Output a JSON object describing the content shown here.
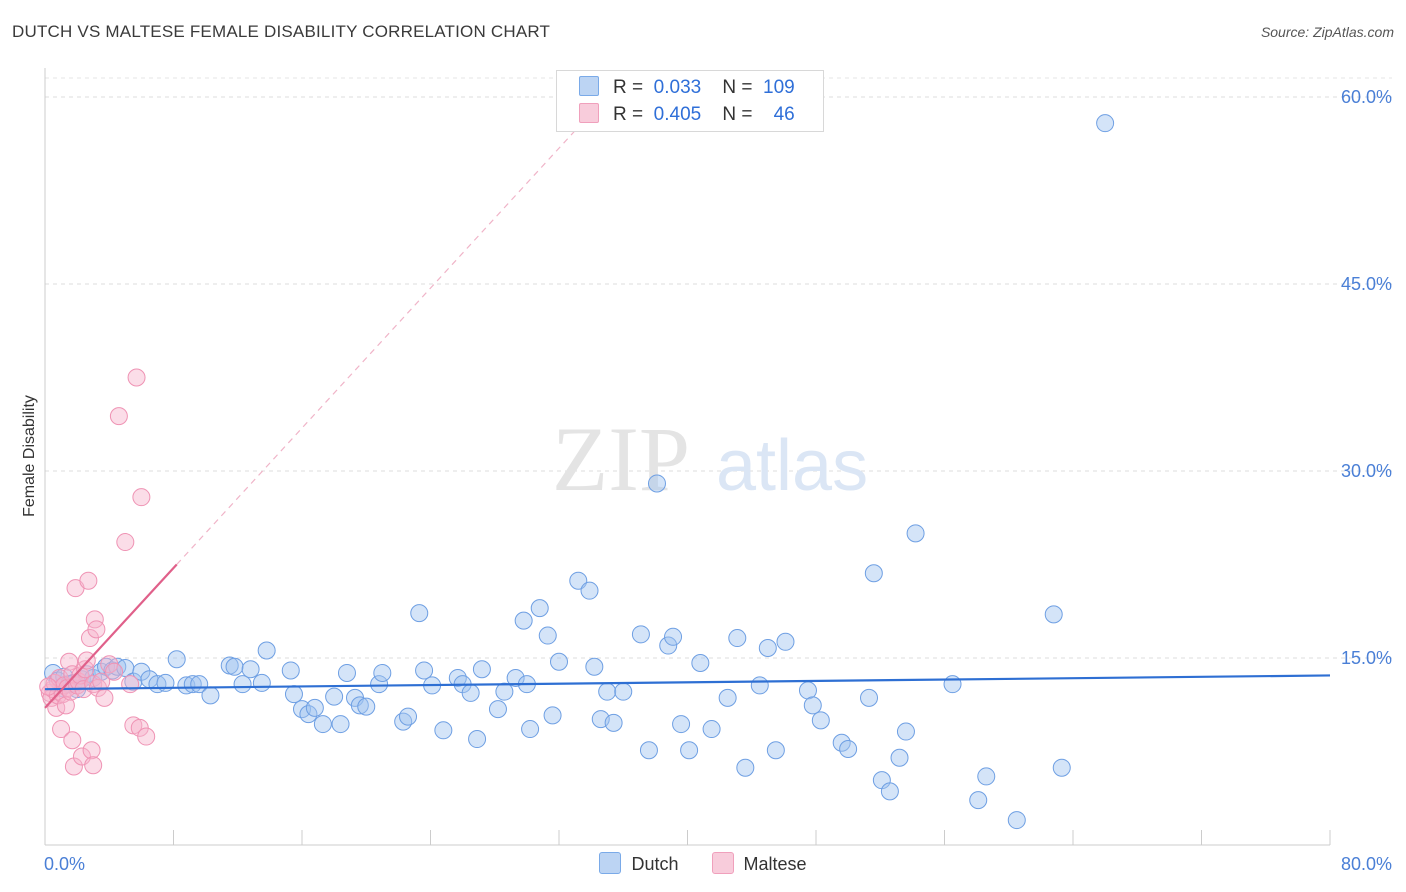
{
  "header": {
    "title": "DUTCH VS MALTESE FEMALE DISABILITY CORRELATION CHART",
    "source": "Source: ZipAtlas.com"
  },
  "legend": {
    "dutch": {
      "r_label": "R =",
      "r_value": "0.033",
      "n_label": "N =",
      "n_value": "109"
    },
    "maltese": {
      "r_label": "R =",
      "r_value": "0.405",
      "n_label": "N =",
      "n_value": "46"
    }
  },
  "bottom_legend": {
    "dutch": "Dutch",
    "maltese": "Maltese"
  },
  "watermark": {
    "zip": "ZIP",
    "atlas": "atlas"
  },
  "chart_data": {
    "type": "scatter",
    "title": "DUTCH VS MALTESE FEMALE DISABILITY CORRELATION CHART",
    "ylabel": "Female Disability",
    "xlabel": "",
    "xlim": [
      0,
      80
    ],
    "ylim": [
      0,
      60
    ],
    "x_tick_labels": [
      "0.0%",
      "80.0%"
    ],
    "y_ticks": [
      15,
      30,
      45,
      60
    ],
    "y_tick_labels": [
      "15.0%",
      "30.0%",
      "45.0%",
      "60.0%"
    ],
    "grid": true,
    "legend_position": "top-center",
    "colors": {
      "dutch": "#7aaae8",
      "dutch_line": "#2e6fd3",
      "maltese": "#f0a0bc",
      "maltese_line": "#e0608a"
    },
    "series": [
      {
        "name": "Dutch",
        "r": 0.033,
        "n": 109,
        "trend": {
          "x": [
            0,
            80
          ],
          "y": [
            12.5,
            13.6
          ]
        },
        "points": [
          [
            0.5,
            13.8
          ],
          [
            0.8,
            13.2
          ],
          [
            1.0,
            12.6
          ],
          [
            1.2,
            13.5
          ],
          [
            1.5,
            12.9
          ],
          [
            1.8,
            13.0
          ],
          [
            2.0,
            12.5
          ],
          [
            2.3,
            13.3
          ],
          [
            2.6,
            13.7
          ],
          [
            3.0,
            13.4
          ],
          [
            3.5,
            13.9
          ],
          [
            3.8,
            14.3
          ],
          [
            4.2,
            14.0
          ],
          [
            4.5,
            14.3
          ],
          [
            5.0,
            14.2
          ],
          [
            5.5,
            13.1
          ],
          [
            6.0,
            13.9
          ],
          [
            6.5,
            13.3
          ],
          [
            7.0,
            12.9
          ],
          [
            7.5,
            13.0
          ],
          [
            8.2,
            14.9
          ],
          [
            8.8,
            12.8
          ],
          [
            9.2,
            12.9
          ],
          [
            9.6,
            12.9
          ],
          [
            10.3,
            12.0
          ],
          [
            11.5,
            14.4
          ],
          [
            11.8,
            14.3
          ],
          [
            12.3,
            12.9
          ],
          [
            12.8,
            14.1
          ],
          [
            13.5,
            13.0
          ],
          [
            13.8,
            15.6
          ],
          [
            15.3,
            14.0
          ],
          [
            15.5,
            12.1
          ],
          [
            16.0,
            10.9
          ],
          [
            16.4,
            10.5
          ],
          [
            16.8,
            11.0
          ],
          [
            17.3,
            9.7
          ],
          [
            18.0,
            11.9
          ],
          [
            18.4,
            9.7
          ],
          [
            18.8,
            13.8
          ],
          [
            19.3,
            11.8
          ],
          [
            19.6,
            11.2
          ],
          [
            20.0,
            11.1
          ],
          [
            20.8,
            12.9
          ],
          [
            21.0,
            13.8
          ],
          [
            22.3,
            9.9
          ],
          [
            22.6,
            10.3
          ],
          [
            23.3,
            18.6
          ],
          [
            23.6,
            14.0
          ],
          [
            24.1,
            12.8
          ],
          [
            24.8,
            9.2
          ],
          [
            25.7,
            13.4
          ],
          [
            26.0,
            12.9
          ],
          [
            26.5,
            12.2
          ],
          [
            26.9,
            8.5
          ],
          [
            27.2,
            14.1
          ],
          [
            28.2,
            10.9
          ],
          [
            28.6,
            12.3
          ],
          [
            29.3,
            13.4
          ],
          [
            29.8,
            18.0
          ],
          [
            30.0,
            12.9
          ],
          [
            30.2,
            9.3
          ],
          [
            30.8,
            19.0
          ],
          [
            31.3,
            16.8
          ],
          [
            31.6,
            10.4
          ],
          [
            32.0,
            14.7
          ],
          [
            33.2,
            21.2
          ],
          [
            33.9,
            20.4
          ],
          [
            34.2,
            14.3
          ],
          [
            34.6,
            10.1
          ],
          [
            35.0,
            12.3
          ],
          [
            35.4,
            9.8
          ],
          [
            36.0,
            12.3
          ],
          [
            37.1,
            16.9
          ],
          [
            37.6,
            7.6
          ],
          [
            38.1,
            29.0
          ],
          [
            38.8,
            16.0
          ],
          [
            39.1,
            16.7
          ],
          [
            39.6,
            9.7
          ],
          [
            40.1,
            7.6
          ],
          [
            40.8,
            14.6
          ],
          [
            41.5,
            9.3
          ],
          [
            42.5,
            11.8
          ],
          [
            43.1,
            16.6
          ],
          [
            43.6,
            6.2
          ],
          [
            44.5,
            12.8
          ],
          [
            45.0,
            15.8
          ],
          [
            45.5,
            7.6
          ],
          [
            46.1,
            16.3
          ],
          [
            47.5,
            12.4
          ],
          [
            47.8,
            11.2
          ],
          [
            48.3,
            10.0
          ],
          [
            49.6,
            8.2
          ],
          [
            50.0,
            7.7
          ],
          [
            51.3,
            11.8
          ],
          [
            51.6,
            21.8
          ],
          [
            52.1,
            5.2
          ],
          [
            52.6,
            4.3
          ],
          [
            53.2,
            7.0
          ],
          [
            53.6,
            9.1
          ],
          [
            54.2,
            25.0
          ],
          [
            56.5,
            12.9
          ],
          [
            58.1,
            3.6
          ],
          [
            58.6,
            5.5
          ],
          [
            60.5,
            2.0
          ],
          [
            62.8,
            18.5
          ],
          [
            63.3,
            6.2
          ],
          [
            66.0,
            57.9
          ]
        ]
      },
      {
        "name": "Maltese",
        "r": 0.405,
        "n": 46,
        "trend": {
          "x": [
            0,
            8.2
          ],
          "y": [
            11.0,
            22.5
          ]
        },
        "trend_dashed": {
          "x": [
            8.2,
            33.5
          ],
          "y": [
            22.5,
            58.0
          ]
        },
        "points": [
          [
            0.3,
            12.2
          ],
          [
            0.4,
            11.8
          ],
          [
            0.5,
            12.5
          ],
          [
            0.6,
            13.0
          ],
          [
            0.7,
            11.0
          ],
          [
            0.8,
            12.0
          ],
          [
            0.9,
            13.4
          ],
          [
            1.0,
            9.3
          ],
          [
            1.1,
            12.1
          ],
          [
            1.2,
            12.8
          ],
          [
            1.3,
            11.2
          ],
          [
            1.4,
            12.6
          ],
          [
            1.5,
            14.7
          ],
          [
            1.6,
            12.3
          ],
          [
            1.7,
            13.7
          ],
          [
            1.7,
            8.4
          ],
          [
            1.8,
            6.3
          ],
          [
            1.9,
            20.6
          ],
          [
            2.0,
            12.8
          ],
          [
            2.1,
            13.1
          ],
          [
            2.2,
            13.6
          ],
          [
            2.3,
            7.1
          ],
          [
            2.4,
            12.5
          ],
          [
            2.5,
            14.1
          ],
          [
            2.6,
            14.8
          ],
          [
            2.7,
            21.2
          ],
          [
            2.8,
            16.6
          ],
          [
            2.9,
            7.6
          ],
          [
            3.0,
            12.9
          ],
          [
            3.0,
            6.4
          ],
          [
            3.1,
            18.1
          ],
          [
            3.2,
            17.3
          ],
          [
            3.3,
            12.6
          ],
          [
            3.5,
            13.1
          ],
          [
            3.7,
            11.8
          ],
          [
            4.0,
            14.5
          ],
          [
            4.3,
            13.9
          ],
          [
            4.6,
            34.4
          ],
          [
            5.0,
            24.3
          ],
          [
            5.3,
            12.9
          ],
          [
            5.5,
            9.6
          ],
          [
            5.7,
            37.5
          ],
          [
            5.9,
            9.4
          ],
          [
            6.0,
            27.9
          ],
          [
            6.3,
            8.7
          ],
          [
            0.2,
            12.7
          ]
        ]
      }
    ]
  }
}
